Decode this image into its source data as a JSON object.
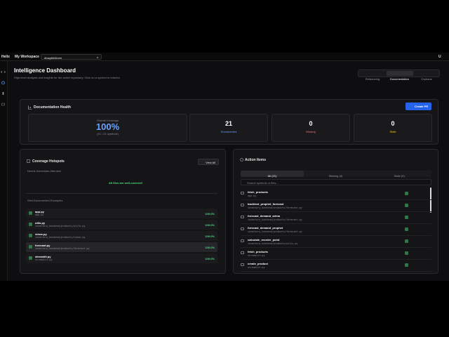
{
  "topbar": {
    "logo": "Helix",
    "workspace": "My Workspace",
    "repo": "divagtrb/klorer",
    "avatar": "U"
  },
  "header": {
    "title": "Intelligence Dashboard",
    "subtitle": "High-level analysis and insights for the active repository. Click on a symbol to refactor.",
    "tabs": [
      "Refactoring",
      "Documentation",
      "Orphans"
    ]
  },
  "health": {
    "title": "Documentation Health",
    "button": "Create PR",
    "coverage_label": "Overall Coverage",
    "coverage_value": "100%",
    "coverage_detail": "(21 / 21 symbols)",
    "stats": [
      {
        "value": "21",
        "label": "Documented"
      },
      {
        "value": "0",
        "label": "Missing"
      },
      {
        "value": "0",
        "label": "Stale"
      }
    ]
  },
  "hotspots": {
    "title": "Coverage Hotspots",
    "button": "View All",
    "attention_title": "Needs Immediate Attention",
    "attention_empty": "All files are well-covered!",
    "examples_title": "Well-Documented Examples",
    "files": [
      {
        "name": "app.py",
        "path": "app.py",
        "pct": "100.0%"
      },
      {
        "name": "utils.py",
        "path": "inventory_backend/products/utils.py",
        "pct": "100.0%"
      },
      {
        "name": "views.py",
        "path": "inventory_backend/products/views.py",
        "pct": "100.0%"
      },
      {
        "name": "forecast.py",
        "path": "inventory_backend/products/forecast.py",
        "pct": "100.0%"
      },
      {
        "name": "streamlit.py",
        "path": "streamlit.py",
        "pct": "100.0%"
      }
    ]
  },
  "actions": {
    "title": "Action Items",
    "tabs": [
      "All (21)",
      "Missing (0)",
      "Stale (0)"
    ],
    "search_placeholder": "Search symbols or files...",
    "items": [
      {
        "name": "fetch_products",
        "path": "app.py"
      },
      {
        "name": "backtest_prophet_forecast",
        "path": "inventory_backend/products/forecast.py"
      },
      {
        "name": "forecast_demand_arima",
        "path": "inventory_backend/products/forecast.py"
      },
      {
        "name": "forecast_demand_prophet",
        "path": "inventory_backend/products/forecast.py"
      },
      {
        "name": "calculate_reorder_point",
        "path": "inventory_backend/products/utils.py"
      },
      {
        "name": "fetch_products",
        "path": "streamlit.py"
      },
      {
        "name": "create_product",
        "path": "streamlit.py"
      }
    ]
  }
}
